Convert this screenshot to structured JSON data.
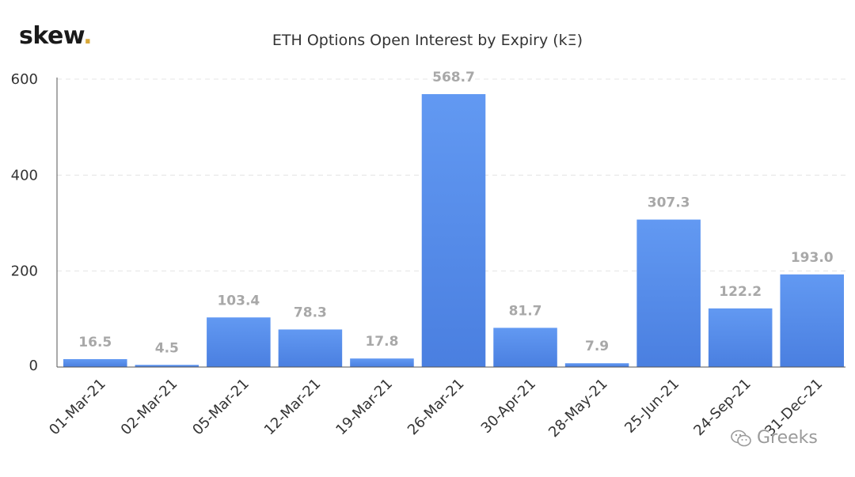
{
  "logo": {
    "text": "skew",
    "dot": "."
  },
  "watermark": {
    "text": "Greeks",
    "icon": "wechat-icon"
  },
  "colors": {
    "bar_top": "#6299f2",
    "bar_bottom": "#4a7fe0",
    "label": "#a8a8a8",
    "axis_text": "#333333",
    "grid": "#e4e4e4"
  },
  "chart_data": {
    "type": "bar",
    "title": "ETH Options Open Interest by Expiry (kΞ)",
    "categories": [
      "01-Mar-21",
      "02-Mar-21",
      "05-Mar-21",
      "12-Mar-21",
      "19-Mar-21",
      "26-Mar-21",
      "30-Apr-21",
      "28-May-21",
      "25-Jun-21",
      "24-Sep-21",
      "31-Dec-21"
    ],
    "values": [
      16.5,
      4.5,
      103.4,
      78.3,
      17.8,
      568.7,
      81.7,
      7.9,
      307.3,
      122.2,
      193.0
    ],
    "value_labels": [
      "16.5",
      "4.5",
      "103.4",
      "78.3",
      "17.8",
      "568.7",
      "81.7",
      "7.9",
      "307.3",
      "122.2",
      "193.0"
    ],
    "yticks": [
      "0",
      "200",
      "400",
      "600"
    ],
    "ylim": [
      0,
      600
    ],
    "grid": true,
    "legend": "none"
  }
}
